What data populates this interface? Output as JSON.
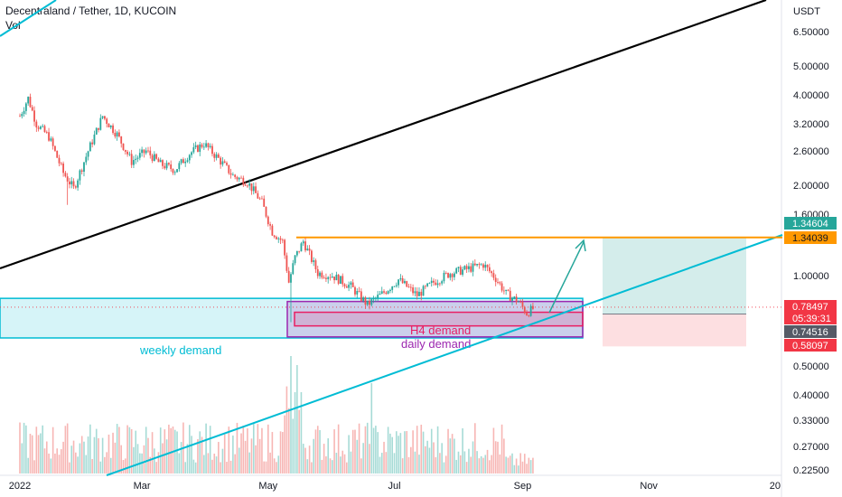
{
  "header": {
    "title": "Decentraland / Tether, 1D, KUCOIN",
    "volume_label": "Vol",
    "currency": "USDT"
  },
  "chart_data": {
    "type": "candlestick",
    "symbol": "Decentraland / Tether",
    "interval": "1D",
    "exchange": "KUCOIN",
    "y_scale": "log",
    "ylim": [
      0.21,
      9.0
    ],
    "y_ticks": [
      "6.50000",
      "5.00000",
      "4.00000",
      "3.20000",
      "2.60000",
      "2.00000",
      "1.60000",
      "1.00000",
      "0.50000",
      "0.40000",
      "0.33000",
      "0.27000",
      "0.22500"
    ],
    "x_ticks": [
      "2022",
      "Mar",
      "May",
      "Jul",
      "Sep",
      "Nov",
      "20"
    ],
    "price_path": [
      {
        "date": "2022-01-01",
        "price": 3.4
      },
      {
        "date": "2022-01-05",
        "price": 3.9
      },
      {
        "date": "2022-01-09",
        "price": 3.2
      },
      {
        "date": "2022-01-15",
        "price": 2.9
      },
      {
        "date": "2022-01-22",
        "price": 2.2
      },
      {
        "date": "2022-01-27",
        "price": 1.95
      },
      {
        "date": "2022-02-03",
        "price": 2.6
      },
      {
        "date": "2022-02-10",
        "price": 3.4
      },
      {
        "date": "2022-02-17",
        "price": 2.95
      },
      {
        "date": "2022-02-24",
        "price": 2.4
      },
      {
        "date": "2022-03-03",
        "price": 2.6
      },
      {
        "date": "2022-03-10",
        "price": 2.35
      },
      {
        "date": "2022-03-17",
        "price": 2.25
      },
      {
        "date": "2022-03-24",
        "price": 2.55
      },
      {
        "date": "2022-03-31",
        "price": 2.75
      },
      {
        "date": "2022-04-07",
        "price": 2.45
      },
      {
        "date": "2022-04-14",
        "price": 2.15
      },
      {
        "date": "2022-04-21",
        "price": 2.05
      },
      {
        "date": "2022-04-28",
        "price": 1.75
      },
      {
        "date": "2022-05-03",
        "price": 1.4
      },
      {
        "date": "2022-05-08",
        "price": 1.3
      },
      {
        "date": "2022-05-11",
        "price": 0.95
      },
      {
        "date": "2022-05-14",
        "price": 1.15
      },
      {
        "date": "2022-05-18",
        "price": 1.3
      },
      {
        "date": "2022-05-25",
        "price": 1.02
      },
      {
        "date": "2022-06-01",
        "price": 1.0
      },
      {
        "date": "2022-06-10",
        "price": 0.92
      },
      {
        "date": "2022-06-18",
        "price": 0.8
      },
      {
        "date": "2022-06-26",
        "price": 0.88
      },
      {
        "date": "2022-07-03",
        "price": 0.97
      },
      {
        "date": "2022-07-12",
        "price": 0.86
      },
      {
        "date": "2022-07-20",
        "price": 0.95
      },
      {
        "date": "2022-07-28",
        "price": 1.02
      },
      {
        "date": "2022-08-05",
        "price": 1.05
      },
      {
        "date": "2022-08-13",
        "price": 1.09
      },
      {
        "date": "2022-08-19",
        "price": 0.98
      },
      {
        "date": "2022-08-24",
        "price": 0.87
      },
      {
        "date": "2022-08-30",
        "price": 0.82
      },
      {
        "date": "2022-09-03",
        "price": 0.75
      },
      {
        "date": "2022-09-07",
        "price": 0.785
      }
    ],
    "price_tags": [
      {
        "value": "1.34604",
        "color": "#26a69a",
        "text_color": "#ffffff"
      },
      {
        "value": "1.34039",
        "color": "#ff9800",
        "text_color": "#131722"
      },
      {
        "value": "0.78497",
        "color": "#f23645",
        "text_color": "#ffffff"
      },
      {
        "value": "05:39:31",
        "color": "#f23645",
        "text_color": "#ffffff"
      },
      {
        "value": "0.74516",
        "color": "#555a66",
        "text_color": "#ffffff"
      },
      {
        "value": "0.58097",
        "color": "#f23645",
        "text_color": "#ffffff"
      }
    ],
    "zones": [
      {
        "name": "weekly demand",
        "color": "#00bcd4",
        "top": 0.84,
        "bottom": 0.62
      },
      {
        "name": "daily demand",
        "color": "#9c27b0",
        "top": 0.82,
        "bottom": 0.625
      },
      {
        "name": "H4 demand",
        "color": "#e91e63",
        "top": 0.755,
        "bottom": 0.68
      }
    ],
    "resistance_line": {
      "value": 1.34039,
      "color": "#ff9800"
    },
    "long_position": {
      "entry": 0.74516,
      "target": 1.34604,
      "stop": 0.58097
    },
    "colors": {
      "up": "#26a69a",
      "down": "#ef5350",
      "volume_up": "#a6dbd6",
      "volume_down": "#f7b6b4",
      "black_trendline": "#000000",
      "cyan_trendline": "#00bcd4",
      "arrow": "#26a69a"
    }
  }
}
